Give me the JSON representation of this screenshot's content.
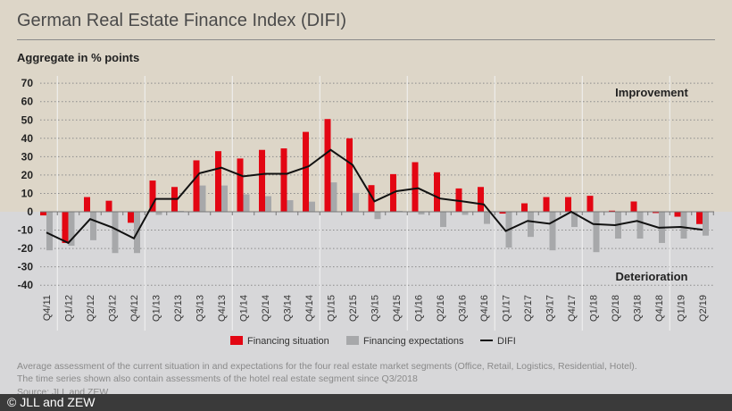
{
  "header": {
    "title": "German Real Estate Finance Index (DIFI)",
    "subtitle": "Aggregate in % points"
  },
  "chart_data": {
    "type": "bar",
    "title": "German Real Estate Finance Index (DIFI)",
    "ylabel": "Aggregate in % points",
    "ylim": [
      -40,
      70
    ],
    "yticks": [
      70,
      60,
      50,
      40,
      30,
      20,
      10,
      0,
      -10,
      -20,
      -30,
      -40
    ],
    "grid": true,
    "legend_placement": "bottom",
    "annotations": [
      "Improvement",
      "Deterioration"
    ],
    "categories": [
      "Q4/11",
      "Q1/12",
      "Q2/12",
      "Q3/12",
      "Q4/12",
      "Q1/13",
      "Q2/13",
      "Q3/13",
      "Q4/13",
      "Q1/14",
      "Q2/14",
      "Q3/14",
      "Q4/14",
      "Q1/15",
      "Q2/15",
      "Q3/15",
      "Q4/15",
      "Q1/16",
      "Q2/16",
      "Q3/16",
      "Q4/16",
      "Q1/17",
      "Q2/17",
      "Q3/17",
      "Q4/17",
      "Q1/18",
      "Q2/18",
      "Q3/18",
      "Q4/18",
      "Q1/19",
      "Q2/19"
    ],
    "series": [
      {
        "name": "Financing situation",
        "type": "bar",
        "color": "#e30613",
        "values": [
          -2,
          -17,
          8,
          6,
          -6,
          17,
          13.5,
          28,
          33,
          29,
          33.7,
          34.5,
          43.5,
          50.5,
          40,
          14.5,
          20.5,
          27,
          21.5,
          12.7,
          13.5,
          -1,
          4.6,
          8,
          8,
          8.7,
          0.6,
          5.6,
          -0.7,
          -2.7,
          -6.7
        ]
      },
      {
        "name": "Financing expectations",
        "type": "bar",
        "color": "#a7a8aa",
        "values": [
          -21,
          -18.5,
          -15.5,
          -22.5,
          -22.5,
          -1.7,
          0.5,
          14.3,
          14.3,
          9.5,
          8.5,
          6.3,
          5.5,
          16,
          10.3,
          -4,
          0.5,
          -1.5,
          -8.3,
          -1.7,
          -6.6,
          -19.5,
          -13.7,
          -21,
          -8.3,
          -22,
          -14.6,
          -14.6,
          -17,
          -14.6,
          -13
        ]
      },
      {
        "name": "DIFI",
        "type": "line",
        "color": "#111111",
        "values": [
          -11.3,
          -17,
          -4,
          -8.5,
          -14.5,
          7,
          7,
          21,
          24,
          19.3,
          20.7,
          20.7,
          24.8,
          33.7,
          25.5,
          5.7,
          11.2,
          12.8,
          7.2,
          5.7,
          4,
          -10.5,
          -5,
          -6.5,
          0,
          -6.7,
          -7.3,
          -5,
          -8.7,
          -8.3,
          -9.8
        ]
      }
    ]
  },
  "footer": {
    "note_line1": "Average assessment of the current situation in and expectations for the four real estate market segments (Office, Retail, Logistics, Residential, Hotel).",
    "note_line2": "The time series shown also contain assessments of the hotel real estate segment since Q3/2018",
    "source": "Source: JLL and ZEW",
    "copyright": "© JLL and ZEW"
  }
}
